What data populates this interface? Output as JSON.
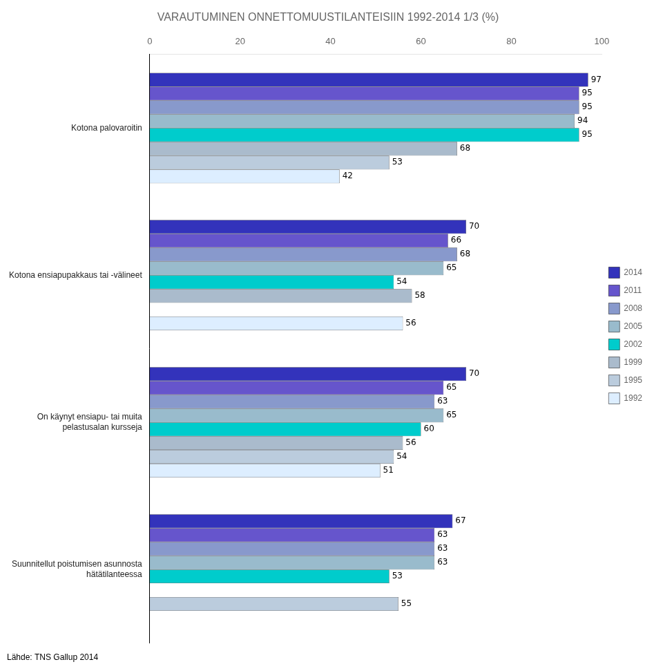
{
  "chart_data": {
    "type": "bar",
    "orientation": "horizontal",
    "title": "VARAUTUMINEN ONNETTOMUUSTILANTEISIIN 1992-2014 1/3 (%)",
    "footnote": "Lähde: TNS Gallup 2014",
    "categories": [
      "Kotona palovaroitin",
      "Kotona ensiapupakkaus tai -välineet",
      "On käynyt ensiapu- tai muita\npelastusalan kursseja",
      "Suunnitellut poistumisen asunnosta\nhätätilanteessa"
    ],
    "series": [
      {
        "name": "2014",
        "color": "#3333bb",
        "values": [
          97,
          70,
          70,
          67
        ]
      },
      {
        "name": "2011",
        "color": "#6655cc",
        "values": [
          95,
          66,
          65,
          63
        ]
      },
      {
        "name": "2008",
        "color": "#8899cc",
        "values": [
          95,
          68,
          63,
          63
        ]
      },
      {
        "name": "2005",
        "color": "#99bbcc",
        "values": [
          94,
          65,
          65,
          63
        ]
      },
      {
        "name": "2002",
        "color": "#00cccc",
        "values": [
          95,
          54,
          60,
          53
        ]
      },
      {
        "name": "1999",
        "color": "#aabbcc",
        "values": [
          68,
          58,
          56,
          null
        ]
      },
      {
        "name": "1995",
        "color": "#bbccdd",
        "values": [
          53,
          null,
          54,
          55
        ]
      },
      {
        "name": "1992",
        "color": "#ddeeff",
        "values": [
          42,
          56,
          51,
          null
        ]
      }
    ],
    "xlim": [
      0,
      100
    ],
    "xticks": [
      0,
      20,
      40,
      60,
      80,
      100
    ],
    "grid": false,
    "legend": "right",
    "data_labels": true
  }
}
